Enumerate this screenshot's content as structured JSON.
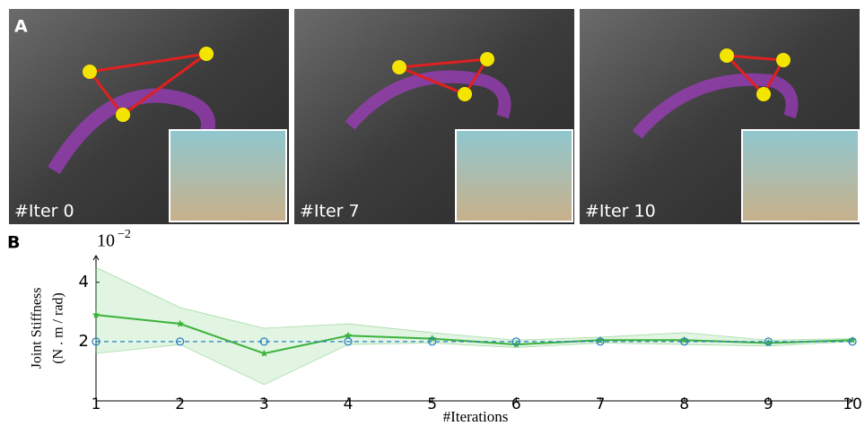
{
  "panel_a": {
    "label": "A",
    "captions": [
      "#Iter 0",
      "#Iter 7",
      "#Iter 10"
    ]
  },
  "panel_b": {
    "label": "B"
  },
  "chart_data": {
    "type": "line",
    "x_label": "#Iterations",
    "y_label": [
      "Joint Stiffness",
      "(N . m / rad)"
    ],
    "y_multiplier": {
      "base": "10",
      "exponent": "−2"
    },
    "x": [
      1,
      2,
      3,
      4,
      5,
      6,
      7,
      8,
      9,
      10
    ],
    "xlim": [
      1,
      10
    ],
    "xticks": [
      1,
      2,
      3,
      4,
      5,
      6,
      7,
      8,
      9,
      10
    ],
    "ylim": [
      0,
      4.9
    ],
    "yticks": [
      2,
      4
    ],
    "series": [
      {
        "color": "#3bb33b",
        "marker": "star",
        "values": [
          2.9,
          2.6,
          1.6,
          2.2,
          2.1,
          1.9,
          2.05,
          2.05,
          1.95,
          2.05
        ],
        "upper": [
          4.5,
          3.15,
          2.45,
          2.6,
          2.3,
          2.05,
          2.15,
          2.3,
          2.05,
          2.1
        ],
        "lower": [
          1.6,
          1.9,
          0.55,
          1.9,
          1.95,
          1.8,
          1.95,
          1.9,
          1.85,
          2.0
        ]
      },
      {
        "color": "#2a7fc1",
        "marker": "circle",
        "dashed": true,
        "values": [
          2,
          2,
          2,
          2,
          2,
          2,
          2,
          2,
          2,
          2
        ]
      }
    ]
  }
}
